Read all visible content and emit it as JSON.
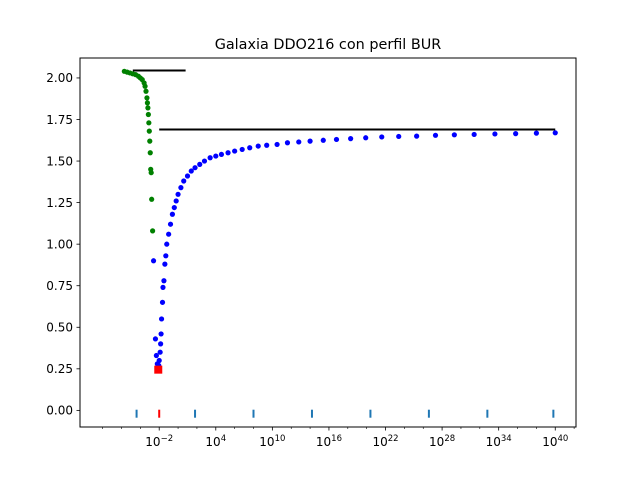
{
  "chart_data": {
    "type": "scatter",
    "title": "Galaxia DDO216 con perfil BUR",
    "xscale": "log",
    "xlabel": "",
    "ylabel": "",
    "xlim_log10": [
      -10.4,
      42.2
    ],
    "ylim": [
      -0.1,
      2.12
    ],
    "x_ticks": [
      {
        "exp": -2,
        "base": "10",
        "sup": "−2"
      },
      {
        "exp": 4,
        "base": "10",
        "sup": "4"
      },
      {
        "exp": 10,
        "base": "10",
        "sup": "10"
      },
      {
        "exp": 16,
        "base": "10",
        "sup": "16"
      },
      {
        "exp": 22,
        "base": "10",
        "sup": "22"
      },
      {
        "exp": 28,
        "base": "10",
        "sup": "28"
      },
      {
        "exp": 34,
        "base": "10",
        "sup": "34"
      },
      {
        "exp": 40,
        "base": "10",
        "sup": "40"
      }
    ],
    "y_ticks": [
      {
        "value": 0.0,
        "label": "0.00"
      },
      {
        "value": 0.25,
        "label": "0.25"
      },
      {
        "value": 0.5,
        "label": "0.50"
      },
      {
        "value": 0.75,
        "label": "0.75"
      },
      {
        "value": 1.0,
        "label": "1.00"
      },
      {
        "value": 1.25,
        "label": "1.25"
      },
      {
        "value": 1.5,
        "label": "1.50"
      },
      {
        "value": 1.75,
        "label": "1.75"
      },
      {
        "value": 2.0,
        "label": "2.00"
      }
    ],
    "series": [
      {
        "name": "green",
        "color": "#008000",
        "marker": "circle",
        "points_log10x_y": [
          [
            -5.7,
            2.04
          ],
          [
            -5.4,
            2.035
          ],
          [
            -5.1,
            2.03
          ],
          [
            -4.8,
            2.025
          ],
          [
            -4.5,
            2.02
          ],
          [
            -4.2,
            2.01
          ],
          [
            -4.0,
            2.0
          ],
          [
            -3.8,
            1.99
          ],
          [
            -3.6,
            1.97
          ],
          [
            -3.5,
            1.95
          ],
          [
            -3.4,
            1.92
          ],
          [
            -3.3,
            1.88
          ],
          [
            -3.25,
            1.85
          ],
          [
            -3.2,
            1.82
          ],
          [
            -3.15,
            1.78
          ],
          [
            -3.1,
            1.73
          ],
          [
            -3.05,
            1.68
          ],
          [
            -3.0,
            1.62
          ],
          [
            -2.95,
            1.55
          ],
          [
            -2.9,
            1.45
          ],
          [
            -2.85,
            1.43
          ],
          [
            -2.8,
            1.27
          ],
          [
            -2.7,
            1.08
          ]
        ]
      },
      {
        "name": "blue",
        "color": "#0000ff",
        "marker": "circle",
        "points_log10x_y": [
          [
            -2.6,
            0.9
          ],
          [
            -2.4,
            0.43
          ],
          [
            -2.3,
            0.33
          ],
          [
            -2.2,
            0.28
          ],
          [
            -2.1,
            0.26
          ],
          [
            -2.05,
            0.27
          ],
          [
            -2.0,
            0.3
          ],
          [
            -1.9,
            0.35
          ],
          [
            -1.85,
            0.4
          ],
          [
            -1.8,
            0.46
          ],
          [
            -1.75,
            0.55
          ],
          [
            -1.65,
            0.65
          ],
          [
            -1.6,
            0.74
          ],
          [
            -1.5,
            0.78
          ],
          [
            -1.4,
            0.88
          ],
          [
            -1.3,
            0.93
          ],
          [
            -1.2,
            1.0
          ],
          [
            -1.0,
            1.06
          ],
          [
            -0.8,
            1.12
          ],
          [
            -0.6,
            1.18
          ],
          [
            -0.4,
            1.22
          ],
          [
            -0.2,
            1.26
          ],
          [
            0.0,
            1.3
          ],
          [
            0.3,
            1.34
          ],
          [
            0.6,
            1.38
          ],
          [
            1.0,
            1.41
          ],
          [
            1.4,
            1.44
          ],
          [
            1.8,
            1.46
          ],
          [
            2.3,
            1.48
          ],
          [
            2.8,
            1.5
          ],
          [
            3.4,
            1.52
          ],
          [
            4.0,
            1.53
          ],
          [
            4.6,
            1.54
          ],
          [
            5.3,
            1.55
          ],
          [
            6.0,
            1.56
          ],
          [
            6.8,
            1.57
          ],
          [
            7.6,
            1.58
          ],
          [
            8.5,
            1.59
          ],
          [
            9.4,
            1.595
          ],
          [
            10.5,
            1.6
          ],
          [
            11.6,
            1.61
          ],
          [
            12.8,
            1.615
          ],
          [
            14.0,
            1.62
          ],
          [
            15.4,
            1.625
          ],
          [
            16.8,
            1.63
          ],
          [
            18.3,
            1.635
          ],
          [
            19.9,
            1.64
          ],
          [
            21.6,
            1.645
          ],
          [
            23.4,
            1.648
          ],
          [
            25.3,
            1.65
          ],
          [
            27.3,
            1.655
          ],
          [
            29.3,
            1.658
          ],
          [
            31.4,
            1.66
          ],
          [
            33.6,
            1.663
          ],
          [
            35.8,
            1.665
          ],
          [
            38.0,
            1.668
          ],
          [
            40.0,
            1.67
          ]
        ]
      }
    ],
    "squares": [
      {
        "log10x": -2.1,
        "y": 0.245,
        "color": "#ff0000"
      }
    ],
    "hlines": [
      {
        "from_log10x": -4.8,
        "to_log10x": 0.8,
        "y": 2.045,
        "color": "#000000"
      },
      {
        "from_log10x": -2.0,
        "to_log10x": 40.0,
        "y": 1.69,
        "color": "#000000"
      }
    ],
    "rug_markers": [
      {
        "log10x": -4.4,
        "color": "#1f77b4"
      },
      {
        "log10x": -2.0,
        "color": "#ff0000"
      },
      {
        "log10x": 1.8,
        "color": "#1f77b4"
      },
      {
        "log10x": 8.0,
        "color": "#1f77b4"
      },
      {
        "log10x": 14.2,
        "color": "#1f77b4"
      },
      {
        "log10x": 20.4,
        "color": "#1f77b4"
      },
      {
        "log10x": 26.6,
        "color": "#1f77b4"
      },
      {
        "log10x": 32.8,
        "color": "#1f77b4"
      },
      {
        "log10x": 39.8,
        "color": "#1f77b4"
      }
    ],
    "rug_y": -0.02,
    "grid": false,
    "legend": "none"
  }
}
